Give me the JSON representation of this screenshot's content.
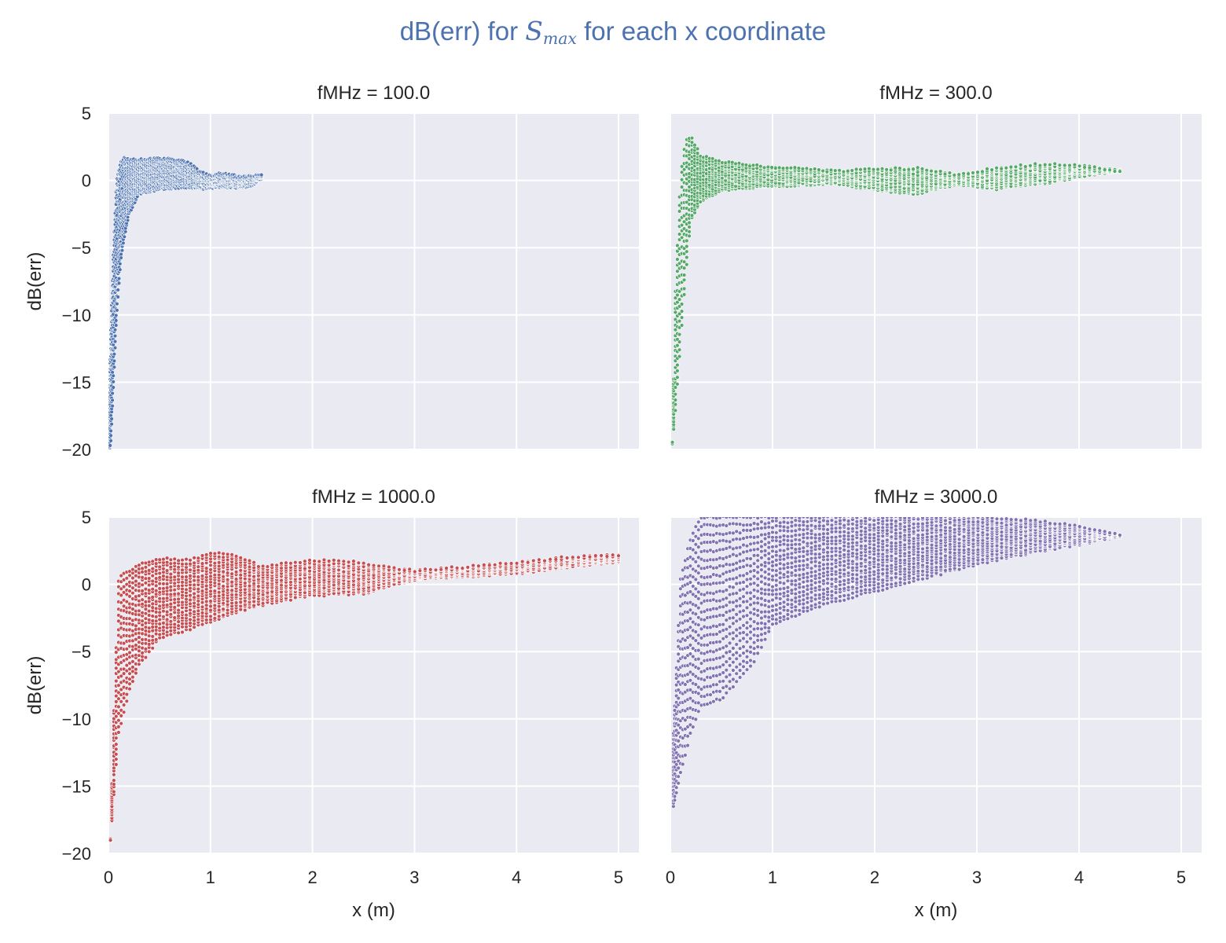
{
  "figure": {
    "title_pre": "dB(err) for ",
    "title_math_main": "S",
    "title_math_sub": "max",
    "title_post": " for each x coordinate"
  },
  "chart_data": [
    {
      "type": "scatter",
      "title": "fMHz = 100.0",
      "ylabel": "dB(err)",
      "xlabel": "",
      "color": "#4c72b0",
      "xlim": [
        0,
        5.2
      ],
      "ylim": [
        -20,
        5
      ],
      "xticks": [
        0,
        1,
        2,
        3,
        4,
        5
      ],
      "yticks": [
        5,
        0,
        -5,
        -10,
        -15,
        -20
      ],
      "show_xtick_labels": false,
      "show_ytick_labels": true,
      "grid": true,
      "envelope": {
        "x": [
          0.0,
          0.02,
          0.05,
          0.08,
          0.12,
          0.16,
          0.2,
          0.3,
          0.5,
          0.7,
          0.8,
          0.9,
          1.0,
          1.1,
          1.2,
          1.3,
          1.4,
          1.5
        ],
        "upper": [
          -20,
          -12,
          -5,
          0,
          1.3,
          1.7,
          1.5,
          1.5,
          1.6,
          1.5,
          1.2,
          0.6,
          0.3,
          0.5,
          0.4,
          0.2,
          0.3,
          0.4
        ],
        "lower": [
          -20,
          -20,
          -15,
          -10,
          -6,
          -4,
          -2.5,
          -1.0,
          -0.6,
          -0.5,
          -0.5,
          -0.6,
          -0.5,
          -0.5,
          -0.5,
          -0.5,
          -0.4,
          0.2
        ]
      }
    },
    {
      "type": "scatter",
      "title": "fMHz = 300.0",
      "ylabel": "",
      "xlabel": "",
      "color": "#55a868",
      "xlim": [
        0,
        5.2
      ],
      "ylim": [
        -20,
        5
      ],
      "xticks": [
        0,
        1,
        2,
        3,
        4,
        5
      ],
      "yticks": [
        5,
        0,
        -5,
        -10,
        -15,
        -20
      ],
      "show_xtick_labels": false,
      "show_ytick_labels": false,
      "grid": true,
      "envelope": {
        "x": [
          0.02,
          0.05,
          0.1,
          0.15,
          0.2,
          0.3,
          0.5,
          0.8,
          1.2,
          1.6,
          2.0,
          2.4,
          2.8,
          3.2,
          3.6,
          4.0,
          4.4
        ],
        "upper": [
          -19.5,
          -8,
          0.5,
          3.0,
          3.3,
          1.8,
          1.4,
          1.1,
          0.9,
          0.7,
          0.8,
          0.9,
          0.4,
          0.9,
          1.2,
          1.1,
          0.7
        ],
        "lower": [
          -19.5,
          -17,
          -12,
          -7,
          -3,
          -1.6,
          -0.7,
          -0.5,
          -0.4,
          -0.2,
          -0.7,
          -1.0,
          -0.3,
          -0.6,
          -0.3,
          0.3,
          0.7
        ]
      }
    },
    {
      "type": "scatter",
      "title": "fMHz = 1000.0",
      "ylabel": "dB(err)",
      "xlabel": "x (m)",
      "color": "#c44e52",
      "xlim": [
        0,
        5.2
      ],
      "ylim": [
        -20,
        5
      ],
      "xticks": [
        0,
        1,
        2,
        3,
        4,
        5
      ],
      "yticks": [
        5,
        0,
        -5,
        -10,
        -15,
        -20
      ],
      "show_xtick_labels": true,
      "show_ytick_labels": true,
      "grid": true,
      "envelope": {
        "x": [
          0.02,
          0.05,
          0.1,
          0.2,
          0.3,
          0.5,
          0.8,
          1.0,
          1.2,
          1.5,
          2.0,
          2.5,
          3.0,
          3.5,
          4.0,
          4.5,
          5.0
        ],
        "upper": [
          -19,
          -10,
          0.5,
          1.0,
          1.5,
          1.9,
          1.8,
          2.3,
          2.3,
          1.3,
          1.8,
          1.6,
          1.0,
          1.3,
          1.6,
          2.0,
          2.2
        ],
        "lower": [
          -19,
          -16,
          -11,
          -8,
          -6,
          -4,
          -3.3,
          -2.8,
          -2.2,
          -1.5,
          -0.8,
          -0.7,
          0.4,
          0.6,
          0.8,
          1.3,
          1.7
        ]
      }
    },
    {
      "type": "scatter",
      "title": "fMHz = 3000.0",
      "ylabel": "",
      "xlabel": "x (m)",
      "color": "#8172b2",
      "xlim": [
        0,
        5.2
      ],
      "ylim": [
        -20,
        5
      ],
      "xticks": [
        0,
        1,
        2,
        3,
        4,
        5
      ],
      "yticks": [
        5,
        0,
        -5,
        -10,
        -15,
        -20
      ],
      "show_xtick_labels": true,
      "show_ytick_labels": false,
      "grid": true,
      "envelope": {
        "x": [
          0.03,
          0.1,
          0.2,
          0.3,
          0.5,
          0.8,
          1.0,
          1.5,
          2.0,
          2.5,
          3.0,
          3.5,
          4.0,
          4.4
        ],
        "upper": [
          -11,
          0.5,
          3.5,
          5.0,
          5.0,
          5.0,
          5.0,
          5.0,
          5.0,
          5.0,
          5.0,
          4.8,
          4.3,
          3.6
        ],
        "lower": [
          -16.5,
          -14,
          -11,
          -9,
          -8.5,
          -6,
          -3,
          -1.5,
          -0.5,
          0.5,
          1.5,
          2.3,
          3.0,
          3.6
        ]
      }
    }
  ]
}
